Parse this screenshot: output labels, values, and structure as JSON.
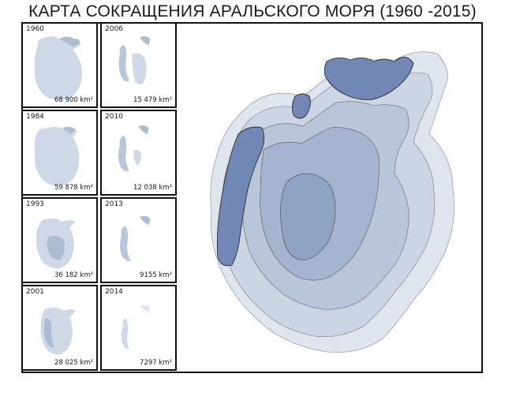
{
  "title": "КАРТА СОКРАЩЕНИЯ АРАЛЬСКОГО МОРЯ (1960 -2015)",
  "panels": [
    {
      "year": "1960",
      "area": "68 900 km²"
    },
    {
      "year": "2006",
      "area": "15 479 km²"
    },
    {
      "year": "1984",
      "area": "59 878 km²"
    },
    {
      "year": "2010",
      "area": "12 038 km²"
    },
    {
      "year": "1993",
      "area": "36 182 km²"
    },
    {
      "year": "2013",
      "area": "9155 km²"
    },
    {
      "year": "2001",
      "area": "28 025 km²"
    },
    {
      "year": "2014",
      "area": "7297 km²"
    }
  ],
  "colors": {
    "water_light": "#dfe5ee",
    "water_mid": "#b9c6d9",
    "water_deep": "#8fa3c2",
    "water_darkest": "#7088b3",
    "outline": "#2b2b2b"
  }
}
